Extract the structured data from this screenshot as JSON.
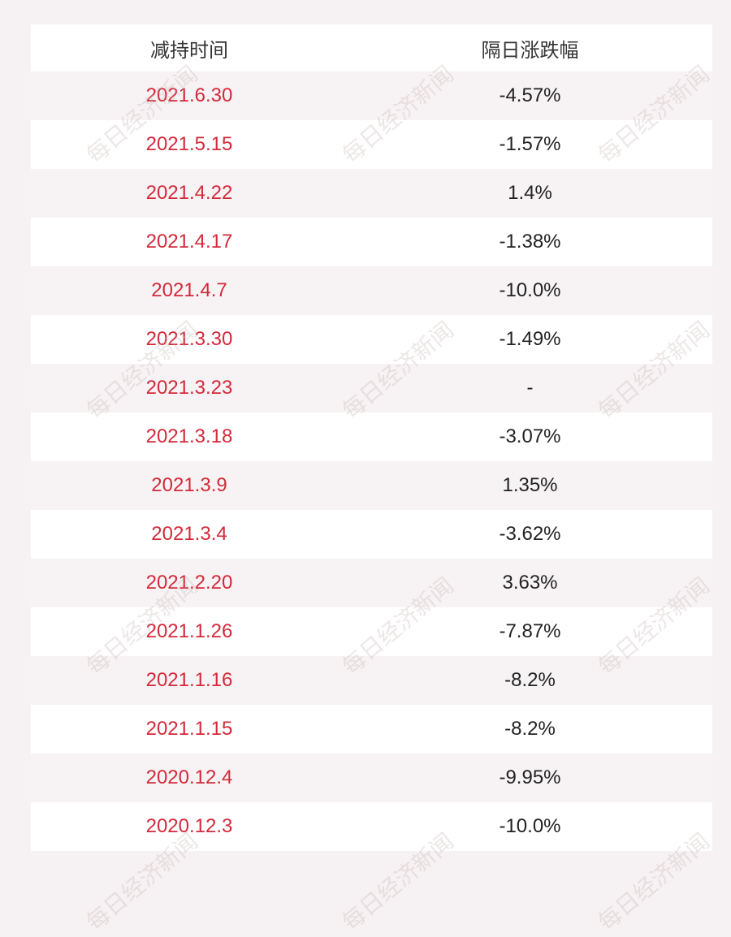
{
  "table": {
    "header": [
      "减持时间",
      "隔日涨跌幅"
    ],
    "rows": [
      [
        "2021.6.30",
        "-4.57%"
      ],
      [
        "2021.5.15",
        "-1.57%"
      ],
      [
        "2021.4.22",
        "1.4%"
      ],
      [
        "2021.4.17",
        "-1.38%"
      ],
      [
        "2021.4.7",
        "-10.0%"
      ],
      [
        "2021.3.30",
        "-1.49%"
      ],
      [
        "2021.3.23",
        "-"
      ],
      [
        "2021.3.18",
        "-3.07%"
      ],
      [
        "2021.3.9",
        "1.35%"
      ],
      [
        "2021.3.4",
        "-3.62%"
      ],
      [
        "2021.2.20",
        "3.63%"
      ],
      [
        "2021.1.26",
        "-7.87%"
      ],
      [
        "2021.1.16",
        "-8.2%"
      ],
      [
        "2021.1.15",
        "-8.2%"
      ],
      [
        "2020.12.4",
        "-9.95%"
      ],
      [
        "2020.12.3",
        "-10.0%"
      ]
    ]
  },
  "watermark": "每日经济新闻"
}
